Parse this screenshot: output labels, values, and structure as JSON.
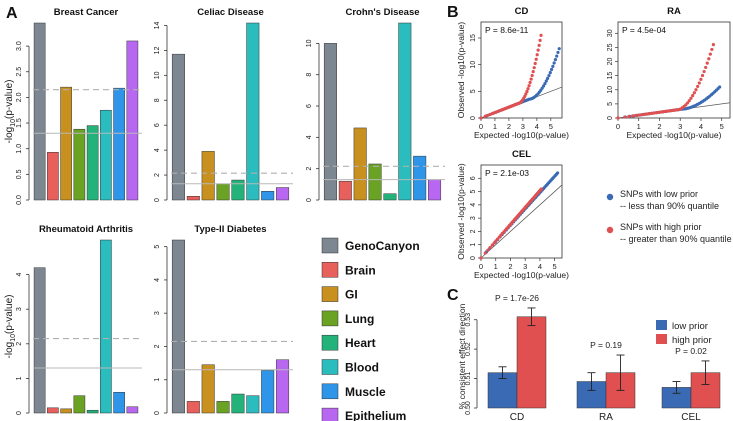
{
  "panel_letters": {
    "a": "A",
    "b": "B",
    "c": "C"
  },
  "colors": {
    "GenoCanyon": "#7d8791",
    "Brain": "#e8605c",
    "GI": "#c8901e",
    "Lung": "#6aa224",
    "Heart": "#22b27a",
    "Blood": "#2bbdbd",
    "Muscle": "#2e95e8",
    "Epithelium": "#b868f0",
    "low_prior": "#3a6ab4",
    "high_prior": "#e05050",
    "threshold_dashed": "#b0b0b0",
    "threshold_solid": "#b8b8b8"
  },
  "legend_a": [
    "GenoCanyon",
    "Brain",
    "GI",
    "Lung",
    "Heart",
    "Blood",
    "Muscle",
    "Epithelium"
  ],
  "legend_b": {
    "low_line1": "SNPs with low prior",
    "low_line2": "-- less than 90% quantile",
    "high_line1": "SNPs with high prior",
    "high_line2": "-- greater than 90% quantile"
  },
  "legend_c": {
    "low": "low prior",
    "high": "high prior"
  },
  "chart_data": [
    {
      "id": "bc",
      "type": "bar",
      "title": "Breast Cancer",
      "ylabel": "-log10(p-value)",
      "categories": [
        "GenoCanyon",
        "Brain",
        "GI",
        "Lung",
        "Heart",
        "Blood",
        "Muscle",
        "Epithelium"
      ],
      "values": [
        3.45,
        0.93,
        2.2,
        1.38,
        1.45,
        1.75,
        2.18,
        3.1
      ],
      "ylim": [
        0,
        3.45
      ],
      "yticks": [
        "0.0",
        "0.5",
        "1.0",
        "1.5",
        "2.0",
        "2.5",
        "3.0"
      ],
      "ytick_values": [
        0,
        0.5,
        1,
        1.5,
        2,
        2.5,
        3
      ],
      "thresholds": {
        "dashed": 2.15,
        "solid": 1.3
      }
    },
    {
      "id": "cel",
      "type": "bar",
      "title": "Celiac Disease",
      "categories": [
        "GenoCanyon",
        "Brain",
        "GI",
        "Lung",
        "Heart",
        "Blood",
        "Muscle",
        "Epithelium"
      ],
      "values": [
        11.7,
        0.3,
        3.9,
        1.3,
        1.6,
        14.2,
        0.7,
        1.0
      ],
      "ylim": [
        0,
        14.2
      ],
      "yticks": [
        "0",
        "2",
        "4",
        "6",
        "8",
        "10",
        "12",
        "14"
      ],
      "ytick_values": [
        0,
        2,
        4,
        6,
        8,
        10,
        12,
        14
      ],
      "thresholds": {
        "dashed": 2.15,
        "solid": 1.3
      }
    },
    {
      "id": "cd",
      "type": "bar",
      "title": "Crohn's Disease",
      "categories": [
        "GenoCanyon",
        "Brain",
        "GI",
        "Lung",
        "Heart",
        "Blood",
        "Muscle",
        "Epithelium"
      ],
      "values": [
        10.0,
        1.2,
        4.6,
        2.3,
        0.4,
        11.3,
        2.8,
        1.3
      ],
      "ylim": [
        0,
        11.3
      ],
      "yticks": [
        "0",
        "2",
        "4",
        "6",
        "8",
        "10"
      ],
      "ytick_values": [
        0,
        2,
        4,
        6,
        8,
        10
      ],
      "thresholds": {
        "dashed": 2.15,
        "solid": 1.3
      }
    },
    {
      "id": "ra",
      "type": "bar",
      "title": "Rheumatoid Arthritis",
      "ylabel": "-log10(p-value)",
      "categories": [
        "GenoCanyon",
        "Brain",
        "GI",
        "Lung",
        "Heart",
        "Blood",
        "Muscle",
        "Epithelium"
      ],
      "values": [
        4.2,
        0.15,
        0.12,
        0.5,
        0.08,
        5.0,
        0.6,
        0.18
      ],
      "ylim": [
        0,
        5.0
      ],
      "yticks": [
        "0",
        "1",
        "2",
        "3",
        "4"
      ],
      "ytick_values": [
        0,
        1,
        2,
        3,
        4
      ],
      "thresholds": {
        "dashed": 2.15,
        "solid": 1.3
      }
    },
    {
      "id": "t2d",
      "type": "bar",
      "title": "Type-II Diabetes",
      "categories": [
        "GenoCanyon",
        "Brain",
        "GI",
        "Lung",
        "Heart",
        "Blood",
        "Muscle",
        "Epithelium"
      ],
      "values": [
        5.2,
        0.35,
        1.45,
        0.35,
        0.57,
        0.52,
        1.28,
        1.6
      ],
      "ylim": [
        0,
        5.2
      ],
      "yticks": [
        "0",
        "1",
        "2",
        "3",
        "4",
        "5"
      ],
      "ytick_values": [
        0,
        1,
        2,
        3,
        4,
        5
      ],
      "thresholds": {
        "dashed": 2.15,
        "solid": 1.3
      }
    },
    {
      "id": "qq_cd",
      "type": "scatter",
      "title": "CD",
      "annotation": "P = 8.6e-11",
      "xlabel": "Expected -log10(p-value)",
      "ylabel": "Observed -log10(p-value)",
      "xlim": [
        0,
        5.8
      ],
      "ylim": [
        0,
        18
      ],
      "xticks": [
        0,
        1,
        2,
        3,
        4,
        5
      ],
      "yticks": [
        0,
        5,
        10,
        15
      ],
      "low_prior_end": [
        5.6,
        13
      ],
      "high_prior_end": [
        4.3,
        15.5
      ],
      "reference_line_end": [
        5.8,
        5.8
      ]
    },
    {
      "id": "qq_ra",
      "type": "scatter",
      "title": "RA",
      "annotation": "P = 4.5e-04",
      "xlabel": "Expected -log10(p-value)",
      "xlim": [
        0,
        5.4
      ],
      "ylim": [
        0,
        34
      ],
      "xticks": [
        0,
        1,
        2,
        3,
        4,
        5
      ],
      "yticks": [
        0,
        5,
        10,
        15,
        20,
        25,
        30
      ],
      "low_prior_end": [
        4.9,
        11
      ],
      "high_prior_end": [
        4.6,
        26
      ],
      "reference_line_end": [
        5.4,
        5.4
      ]
    },
    {
      "id": "qq_cel",
      "type": "scatter",
      "title": "CEL",
      "annotation": "P = 2.1e-03",
      "xlabel": "Expected -log10(p-value)",
      "ylabel": "Observed -log10(p-value)",
      "xlim": [
        0,
        5.5
      ],
      "ylim": [
        0,
        7
      ],
      "xticks": [
        0,
        1,
        2,
        3,
        4,
        5
      ],
      "yticks": [
        0,
        1,
        2,
        3,
        4,
        5,
        6
      ],
      "low_prior_end": [
        5.2,
        6.4
      ],
      "high_prior_end": [
        4.1,
        5.2
      ],
      "reference_line_end": [
        5.5,
        5.5
      ]
    },
    {
      "id": "consistency",
      "type": "bar",
      "ylabel": "% consistent effect direction",
      "categories": [
        "CD",
        "RA",
        "CEL"
      ],
      "series": [
        {
          "name": "low prior",
          "values": [
            0.512,
            0.509,
            0.507
          ],
          "errors": [
            0.002,
            0.003,
            0.002
          ]
        },
        {
          "name": "high prior",
          "values": [
            0.531,
            0.512,
            0.512
          ],
          "errors": [
            0.003,
            0.006,
            0.004
          ]
        }
      ],
      "pvalues": [
        "P = 1.7e-26",
        "P = 0.19",
        "P = 0.02"
      ],
      "ylim": [
        0.5,
        0.535
      ],
      "yticks": [
        "0.50",
        "0.51",
        "0.52",
        "0.53"
      ],
      "ytick_values": [
        0.5,
        0.51,
        0.52,
        0.53
      ]
    }
  ]
}
